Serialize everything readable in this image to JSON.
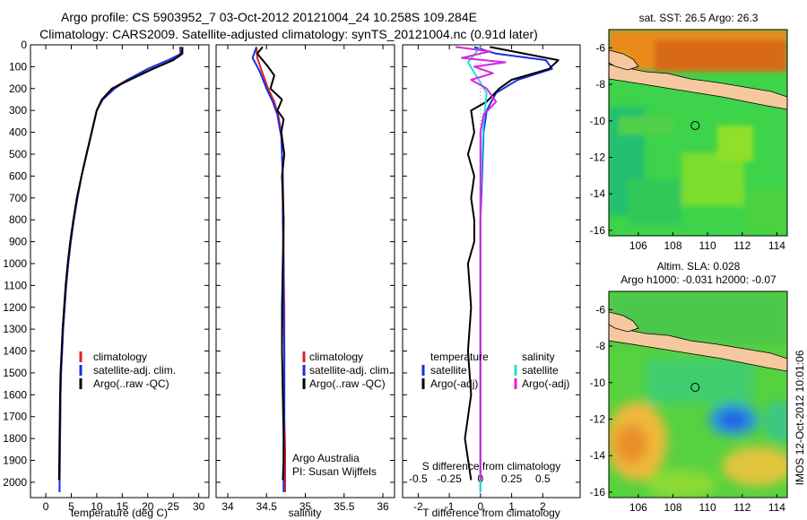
{
  "header": {
    "line1": "Argo profile: CS 5903952_7 03-Oct-2012 20121004_24 10.258S 109.284E",
    "line2": "Climatology: CARS2009. Satellite-adjusted climatology: synTS_20121004.nc (0.91d later)"
  },
  "footer_stamp": "IMOS 12-Oct-2012 10:01:06",
  "colors": {
    "clim": "#dd2222",
    "sat": "#1a2ee0",
    "argo": "#000000",
    "sal_sat": "#22dddd",
    "sal_argo": "#dd22dd",
    "land": "#f5c8a0"
  },
  "chart_data": [
    {
      "id": "temperature",
      "type": "line",
      "xlabel": "temperature (deg C)",
      "ylabel": "",
      "xlim": [
        -3,
        32
      ],
      "ylim": [
        2070,
        0
      ],
      "xticks": [
        "0",
        "5",
        "10",
        "15",
        "20",
        "25",
        "30"
      ],
      "xtick_values": [
        0,
        5,
        10,
        15,
        20,
        25,
        30
      ],
      "yticks": [
        "0",
        "100",
        "200",
        "300",
        "400",
        "500",
        "600",
        "700",
        "800",
        "900",
        "1000",
        "1100",
        "1200",
        "1300",
        "1400",
        "1500",
        "1600",
        "1700",
        "1800",
        "1900",
        "2000"
      ],
      "ytick_values": [
        0,
        100,
        200,
        300,
        400,
        500,
        600,
        700,
        800,
        900,
        1000,
        1100,
        1200,
        1300,
        1400,
        1500,
        1600,
        1700,
        1800,
        1900,
        2000
      ],
      "legend": [
        "climatology",
        "satellite-adj. clim.",
        "Argo(..raw -QC)"
      ],
      "series": [
        {
          "name": "climatology",
          "color": "clim",
          "x": [
            26.5,
            26.3,
            24,
            20,
            16,
            13,
            11,
            10,
            9,
            8,
            7,
            6.2,
            5.5,
            4.9,
            4.4,
            4.0,
            3.7,
            3.4,
            3.2,
            3.0,
            2.9,
            2.8,
            2.7
          ],
          "y": [
            10,
            50,
            80,
            120,
            160,
            200,
            250,
            300,
            400,
            500,
            600,
            700,
            800,
            900,
            1000,
            1100,
            1200,
            1300,
            1400,
            1500,
            1600,
            1800,
            2045
          ]
        },
        {
          "name": "satellite-adj. clim.",
          "color": "sat",
          "x": [
            26.3,
            26.6,
            24,
            20,
            16,
            13.5,
            11.2,
            10,
            9,
            8,
            7,
            6.2,
            5.5,
            4.9,
            4.4,
            4.0,
            3.7,
            3.4,
            3.2,
            3.0,
            2.9,
            2.8,
            2.7
          ],
          "y": [
            10,
            40,
            70,
            110,
            160,
            200,
            250,
            300,
            400,
            500,
            600,
            700,
            800,
            900,
            1000,
            1100,
            1200,
            1300,
            1400,
            1500,
            1600,
            1800,
            2045
          ]
        },
        {
          "name": "Argo(..raw -QC)",
          "color": "argo",
          "x": [
            26.8,
            26.8,
            25,
            21,
            16.5,
            13,
            11,
            10,
            9,
            8,
            7,
            6.1,
            5.4,
            4.8,
            4.3,
            3.9,
            3.6,
            3.3,
            3.1,
            2.9,
            2.8,
            2.7,
            2.6
          ],
          "y": [
            10,
            40,
            70,
            110,
            160,
            200,
            250,
            300,
            400,
            500,
            600,
            700,
            800,
            900,
            1000,
            1100,
            1200,
            1300,
            1400,
            1500,
            1600,
            1800,
            1990
          ]
        }
      ]
    },
    {
      "id": "salinity",
      "type": "line",
      "xlabel": "salinity",
      "xlim": [
        33.85,
        36.15
      ],
      "ylim": [
        2070,
        0
      ],
      "xticks": [
        "34",
        "34.5",
        "35",
        "35.5",
        "36"
      ],
      "xtick_values": [
        34,
        34.5,
        35,
        35.5,
        36
      ],
      "legend": [
        "climatology",
        "satellite-adj. clim.",
        "Argo(..raw -QC)"
      ],
      "annotation": [
        "Argo Australia",
        "PI: Susan Wijffels"
      ],
      "series": [
        {
          "name": "climatology",
          "color": "clim",
          "x": [
            34.37,
            34.38,
            34.44,
            34.52,
            34.6,
            34.65,
            34.68,
            34.7,
            34.7,
            34.71,
            34.72,
            34.72,
            34.73,
            34.73,
            34.73,
            34.73,
            34.74,
            34.74,
            34.74
          ],
          "y": [
            10,
            60,
            120,
            200,
            260,
            320,
            380,
            420,
            500,
            600,
            800,
            1000,
            1200,
            1400,
            1500,
            1700,
            1850,
            1950,
            2045
          ]
        },
        {
          "name": "satellite-adj. clim.",
          "color": "sat",
          "x": [
            34.37,
            34.32,
            34.41,
            34.5,
            34.58,
            34.64,
            34.67,
            34.69,
            34.7,
            34.71,
            34.71,
            34.72,
            34.72,
            34.73,
            34.73,
            34.73,
            34.72,
            34.72,
            34.72
          ],
          "y": [
            10,
            60,
            120,
            200,
            260,
            320,
            380,
            420,
            500,
            600,
            800,
            1000,
            1200,
            1400,
            1500,
            1700,
            1850,
            1950,
            2045
          ]
        },
        {
          "name": "Argo(..raw -QC)",
          "color": "argo",
          "x": [
            34.45,
            34.38,
            34.52,
            34.6,
            34.55,
            34.7,
            34.64,
            34.72,
            34.69,
            34.73,
            34.7,
            34.72,
            34.71,
            34.7,
            34.7,
            34.71,
            34.72,
            34.72,
            34.71
          ],
          "y": [
            10,
            40,
            100,
            140,
            200,
            250,
            300,
            340,
            400,
            500,
            600,
            800,
            1000,
            1200,
            1400,
            1600,
            1800,
            1900,
            1990
          ]
        }
      ]
    },
    {
      "id": "difference",
      "type": "line",
      "xlabel": "T difference from climatology",
      "xlabel_top": "S difference from climatology",
      "xlim": [
        -2.5,
        3.2
      ],
      "ylim": [
        2070,
        0
      ],
      "xticks": [
        "-2",
        "-1",
        "0",
        "1",
        "2"
      ],
      "xtick_values": [
        -2,
        -1,
        0,
        1,
        2
      ],
      "xticks_top": [
        "-0.5",
        "-0.25",
        "0",
        "0.25",
        "0.5"
      ],
      "xtick_top_values": [
        -2,
        -1,
        0,
        1,
        2
      ],
      "legend_left_title": "temperature",
      "legend_right_title": "salinity",
      "legend_left": [
        "satellite",
        "Argo(-adj)"
      ],
      "legend_right": [
        "satellite",
        "Argo(-adj)"
      ],
      "series": [
        {
          "name": "T satellite",
          "color": "sat",
          "x": [
            -0.2,
            0.5,
            2.1,
            2.3,
            1.2,
            0.5,
            0.2,
            0.1,
            0.05,
            0.0,
            0.0,
            0.0,
            0.0,
            0.0
          ],
          "y": [
            10,
            40,
            70,
            110,
            160,
            220,
            300,
            400,
            600,
            800,
            1000,
            1400,
            1800,
            2045
          ]
        },
        {
          "name": "T Argo(-adj)",
          "color": "argo",
          "x": [
            0.3,
            2.5,
            2.2,
            1.0,
            0.6,
            0.2,
            -0.3,
            -0.2,
            -0.4,
            -0.2,
            -0.3,
            -0.2,
            -0.2,
            -0.4,
            -0.3,
            -0.4,
            -0.3,
            -0.5,
            -0.3
          ],
          "y": [
            10,
            70,
            110,
            160,
            200,
            260,
            300,
            400,
            500,
            600,
            700,
            800,
            900,
            1000,
            1200,
            1400,
            1600,
            1800,
            1990
          ]
        },
        {
          "name": "S satellite",
          "color": "sal_sat",
          "x": [
            0.0,
            -0.4,
            -0.1,
            0.2,
            0.1,
            0.05,
            0.0,
            0.0,
            0.0,
            0.0
          ],
          "y": [
            10,
            80,
            150,
            220,
            350,
            500,
            700,
            1000,
            1500,
            2045
          ]
        },
        {
          "name": "S Argo(-adj)",
          "color": "sal_argo",
          "x": [
            -0.8,
            0.3,
            -0.6,
            0.8,
            -0.2,
            0.4,
            -0.3,
            0.2,
            0.5,
            0.1,
            0.0,
            0.0,
            0.0,
            0.0,
            0.0
          ],
          "y": [
            10,
            30,
            60,
            80,
            100,
            130,
            160,
            200,
            260,
            320,
            400,
            600,
            1000,
            1500,
            1990
          ]
        }
      ]
    },
    {
      "id": "sst_map",
      "type": "heatmap",
      "title": "sat. SST: 26.5 Argo: 26.3",
      "xlim": [
        104.3,
        114.6
      ],
      "ylim": [
        -16.3,
        -5.0
      ],
      "xticks": [
        "106",
        "108",
        "110",
        "112",
        "114"
      ],
      "xtick_values": [
        106,
        108,
        110,
        112,
        114
      ],
      "yticks": [
        "-6",
        "-8",
        "-10",
        "-12",
        "-14",
        "-16"
      ],
      "ytick_values": [
        -6,
        -8,
        -10,
        -12,
        -14,
        -16
      ],
      "marker": {
        "lon": 109.284,
        "lat": -10.258
      }
    },
    {
      "id": "sla_map",
      "type": "heatmap",
      "title": "Altim. SLA: 0.028",
      "subtitle": "Argo h1000: -0.031 h2000: -0.07",
      "xlim": [
        104.3,
        114.6
      ],
      "ylim": [
        -16.3,
        -5.0
      ],
      "xticks": [
        "106",
        "108",
        "110",
        "112",
        "114"
      ],
      "xtick_values": [
        106,
        108,
        110,
        112,
        114
      ],
      "yticks": [
        "-6",
        "-8",
        "-10",
        "-12",
        "-14",
        "-16"
      ],
      "ytick_values": [
        -6,
        -8,
        -10,
        -12,
        -14,
        -16
      ],
      "marker": {
        "lon": 109.284,
        "lat": -10.258
      }
    }
  ]
}
